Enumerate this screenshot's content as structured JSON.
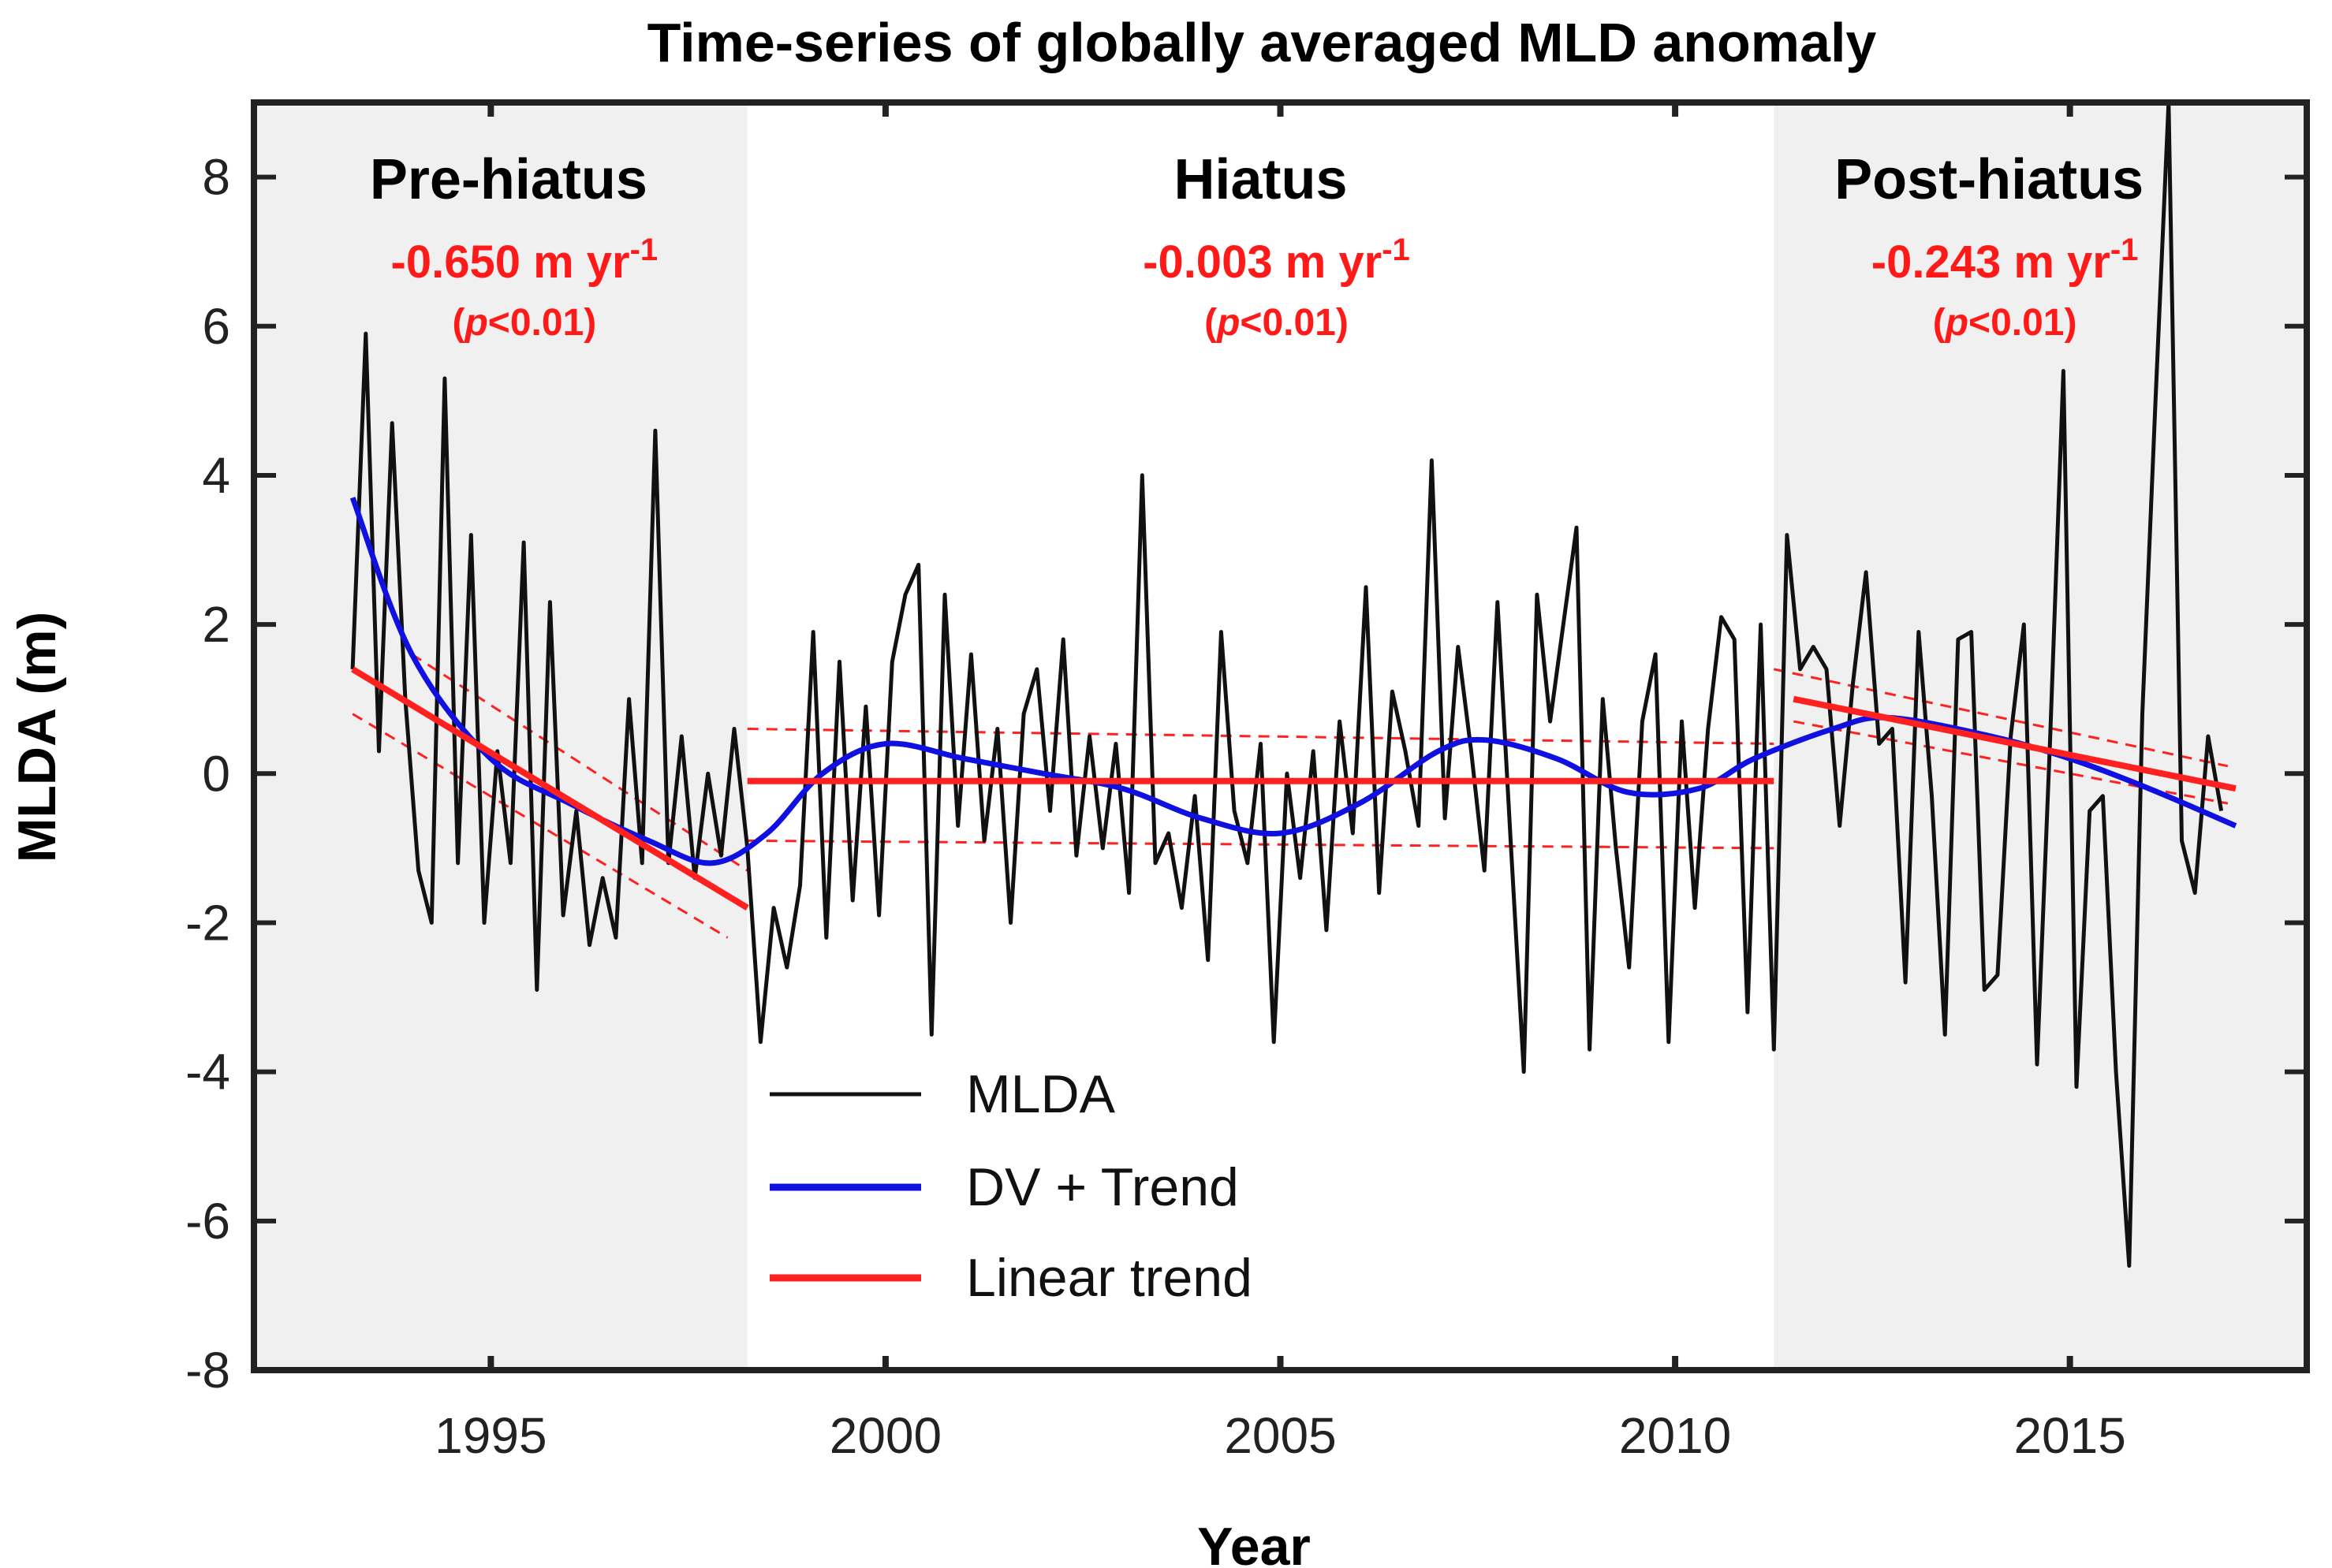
{
  "chart_data": {
    "type": "line",
    "title": "Time-series of globally averaged MLD anomaly",
    "xlabel": "Year",
    "ylabel": "MLDA (m)",
    "xlim": [
      1992,
      2018
    ],
    "ylim": [
      -8,
      9
    ],
    "xticks": [
      1995,
      2000,
      2005,
      2010,
      2015
    ],
    "yticks": [
      -8,
      -6,
      -4,
      -2,
      0,
      2,
      4,
      6,
      8
    ],
    "grid": false,
    "legend_position": "bottom-left",
    "colors": {
      "mlda": "#111111",
      "dv": "#1010e0",
      "trend": "#ff2020",
      "shade": "#f0f0f0",
      "frame": "#222222"
    },
    "periods": [
      {
        "name": "Pre-hiatus",
        "start": 1992,
        "end": 1998.25,
        "shaded": true,
        "rate": "-0.650 m yr",
        "rate_sup": "-1",
        "p": "p",
        "p_rest": "<0.01",
        "p_open": "(",
        "p_close": ")",
        "trend": [
          [
            1993.25,
            1.4
          ],
          [
            1998.25,
            -1.8
          ]
        ],
        "upper": [
          [
            1994.0,
            1.6
          ],
          [
            1998.25,
            -1.3
          ]
        ],
        "lower": [
          [
            1993.25,
            0.8
          ],
          [
            1998.0,
            -2.2
          ]
        ]
      },
      {
        "name": "Hiatus",
        "start": 1998.25,
        "end": 2011.25,
        "shaded": false,
        "rate": "-0.003 m yr",
        "rate_sup": "-1",
        "p": "p",
        "p_rest": "<0.01",
        "p_open": "(",
        "p_close": ")",
        "trend": [
          [
            1998.25,
            -0.1
          ],
          [
            2011.25,
            -0.1
          ]
        ],
        "upper": [
          [
            1998.25,
            0.6
          ],
          [
            2011.25,
            0.4
          ]
        ],
        "lower": [
          [
            1998.25,
            -0.9
          ],
          [
            2011.25,
            -1.0
          ]
        ]
      },
      {
        "name": "Post-hiatus",
        "start": 2011.25,
        "end": 2018,
        "shaded": true,
        "rate": "-0.243 m yr",
        "rate_sup": "-1",
        "p": "p",
        "p_rest": "<0.01",
        "p_open": "(",
        "p_close": ")",
        "trend": [
          [
            2011.5,
            1.0
          ],
          [
            2017.1,
            -0.2
          ]
        ],
        "upper": [
          [
            2011.25,
            1.4
          ],
          [
            2017.0,
            0.1
          ]
        ],
        "lower": [
          [
            2011.5,
            0.7
          ],
          [
            2017.0,
            -0.4
          ]
        ]
      }
    ],
    "series": [
      {
        "name": "MLDA",
        "x_start": 1993.25,
        "x_step": 0.16667,
        "values": [
          1.4,
          5.9,
          0.3,
          4.7,
          1.0,
          -1.3,
          -2.0,
          5.3,
          -1.2,
          3.2,
          -2.0,
          0.3,
          -1.2,
          3.1,
          -2.9,
          2.3,
          -1.9,
          -0.5,
          -2.3,
          -1.4,
          -2.2,
          1.0,
          -1.2,
          4.6,
          -1.2,
          0.5,
          -1.4,
          0.0,
          -1.1,
          0.6,
          -1.0,
          -3.6,
          -1.8,
          -2.6,
          -1.5,
          1.9,
          -2.2,
          1.5,
          -1.7,
          0.9,
          -1.9,
          1.5,
          2.4,
          2.8,
          -3.5,
          2.4,
          -0.7,
          1.6,
          -0.9,
          0.6,
          -2.0,
          0.8,
          1.4,
          -0.5,
          1.8,
          -1.1,
          0.5,
          -1.0,
          0.4,
          -1.6,
          4.0,
          -1.2,
          -0.8,
          -1.8,
          -0.3,
          -2.5,
          1.9,
          -0.5,
          -1.2,
          0.4,
          -3.6,
          0.0,
          -1.4,
          0.3,
          -2.1,
          0.7,
          -0.8,
          2.5,
          -1.6,
          1.1,
          0.3,
          -0.7,
          4.2,
          -0.6,
          1.7,
          0.3,
          -1.3,
          2.3,
          -0.9,
          -4.0,
          2.4,
          0.7,
          2.0,
          3.3,
          -3.7,
          1.0,
          -1.0,
          -2.6,
          0.7,
          1.6,
          -3.6,
          0.7,
          -1.8,
          0.6,
          2.1,
          1.8,
          -3.2,
          2.0,
          -3.7,
          3.2,
          1.4,
          1.7,
          1.4,
          -0.7,
          1.2,
          2.7,
          0.4,
          0.6,
          -2.8,
          1.9,
          -0.3,
          -3.5,
          1.8,
          1.9,
          -2.9,
          -2.7,
          0.5,
          2.0,
          -3.9,
          0.5,
          5.4,
          -4.2,
          -0.5,
          -0.3,
          -4.0,
          -6.6,
          0.8,
          5.0,
          9.0,
          -0.9,
          -1.6,
          0.5,
          -0.5
        ]
      },
      {
        "name": "DV + Trend",
        "points": [
          [
            1993.25,
            3.7
          ],
          [
            1994,
            1.6
          ],
          [
            1995,
            0.2
          ],
          [
            1996,
            -0.4
          ],
          [
            1997,
            -0.9
          ],
          [
            1997.8,
            -1.2
          ],
          [
            1998.5,
            -0.8
          ],
          [
            1999.2,
            0.0
          ],
          [
            2000,
            0.4
          ],
          [
            2001,
            0.2
          ],
          [
            2002,
            0.0
          ],
          [
            2003,
            -0.2
          ],
          [
            2004,
            -0.6
          ],
          [
            2005,
            -0.8
          ],
          [
            2006,
            -0.4
          ],
          [
            2007,
            0.3
          ],
          [
            2007.6,
            0.45
          ],
          [
            2008.5,
            0.2
          ],
          [
            2009.4,
            -0.25
          ],
          [
            2010.3,
            -0.2
          ],
          [
            2011,
            0.2
          ],
          [
            2012,
            0.6
          ],
          [
            2012.7,
            0.75
          ],
          [
            2014,
            0.5
          ],
          [
            2015,
            0.2
          ],
          [
            2016,
            -0.2
          ],
          [
            2017.1,
            -0.7
          ]
        ]
      },
      {
        "name": "Linear trend"
      }
    ],
    "legend": [
      "MLDA",
      "DV + Trend",
      "Linear trend"
    ]
  }
}
